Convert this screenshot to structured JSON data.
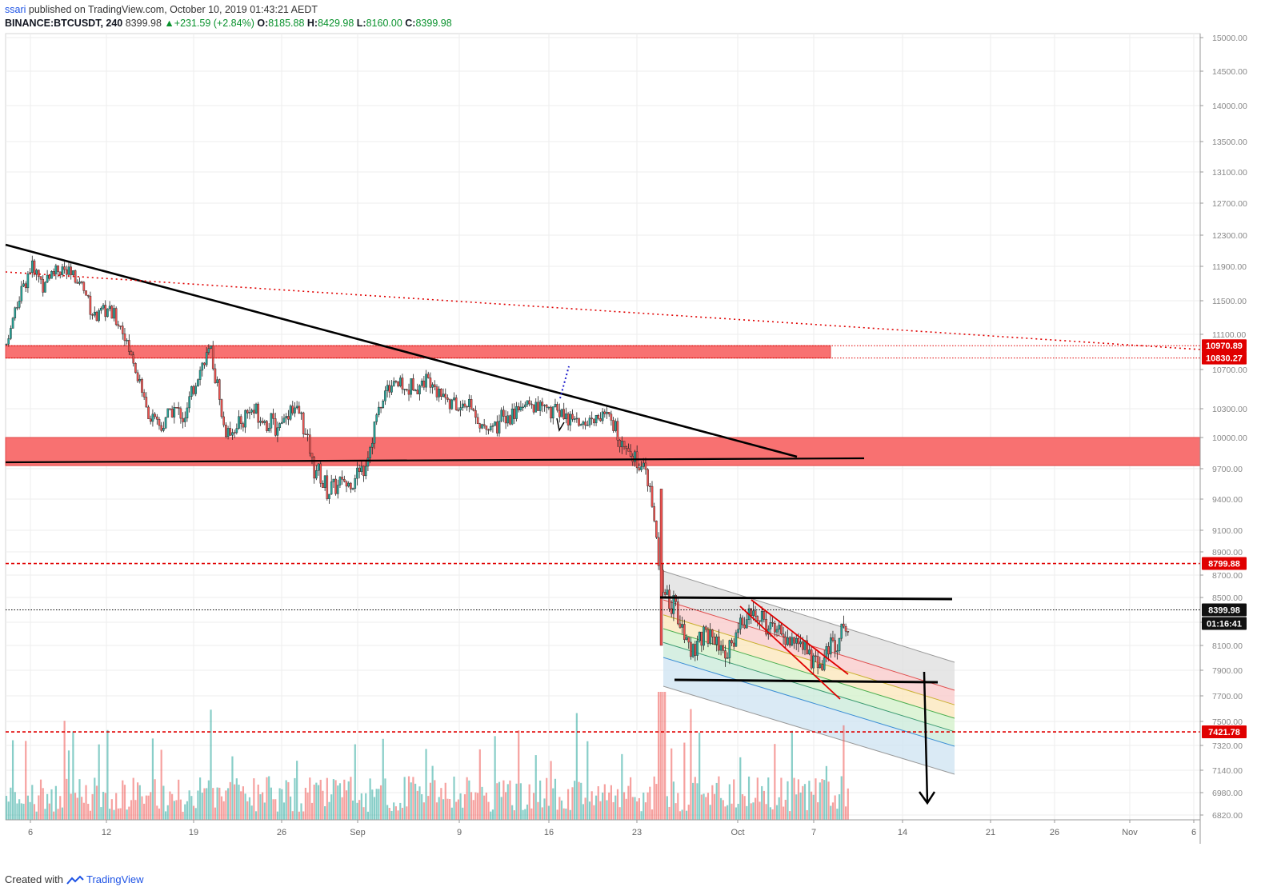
{
  "header": {
    "author": "ssari",
    "published_text": "published on TradingView.com, October 10, 2019 01:43:21 AEDT",
    "symbol": "BINANCE:BTCUSDT, 240",
    "last": "8399.98",
    "change": "+231.59 (+2.84%)",
    "o_label": "O:",
    "o_value": "8185.88",
    "h_label": "H:",
    "h_value": "8429.98",
    "l_label": "L:",
    "l_value": "8160.00",
    "c_label": "C:",
    "c_value": "8399.98"
  },
  "footer": {
    "created_with": "Created with",
    "brand": "TradingView"
  },
  "colors": {
    "up": "#26a69a",
    "down": "#ef5350",
    "zone": "#f87171",
    "level": "#e00000",
    "trend": "#000000",
    "grid": "#eeeeee"
  },
  "chart_data": {
    "type": "candlestick",
    "y_axis": {
      "ticks": [
        15000,
        14500,
        14000,
        13500,
        13100,
        12700,
        12300,
        11900,
        11500,
        11100,
        10700,
        10300,
        10000,
        9700,
        9400,
        9100,
        8900,
        8700,
        8500,
        8300,
        8100,
        7900,
        7700,
        7500,
        7320,
        7140,
        6980,
        6820
      ],
      "tick_labels": [
        "15000.00",
        "14500.00",
        "14000.00",
        "13500.00",
        "13100.00",
        "12700.00",
        "12300.00",
        "11900.00",
        "11500.00",
        "11100.00",
        "10700.00",
        "10300.00",
        "10000.00",
        "9700.00",
        "9400.00",
        "9100.00",
        "8900.00",
        "8700.00",
        "8500.00",
        "8300.00",
        "8100.00",
        "7900.00",
        "7700.00",
        "7500.00",
        "7320.00",
        "7140.00",
        "6980.00",
        "6820.00"
      ]
    },
    "x_axis": {
      "tick_labels": [
        "6",
        "12",
        "19",
        "26",
        "Sep",
        "9",
        "16",
        "23",
        "Oct",
        "7",
        "14",
        "21",
        "26",
        "Nov",
        "6"
      ]
    },
    "price_labels": [
      {
        "value": "10970.89",
        "style": "red"
      },
      {
        "value": "10830.27",
        "style": "red"
      },
      {
        "value": "8799.88",
        "style": "red"
      },
      {
        "value": "8399.98",
        "style": "dark"
      },
      {
        "value": "01:16:41",
        "style": "dark"
      },
      {
        "value": "7421.78",
        "style": "red"
      }
    ],
    "horizontal_levels": [
      8799.88,
      7421.78,
      8399.98,
      10970.89,
      10830.27
    ],
    "resistance_zones": [
      [
        10830.27,
        10970.89
      ],
      [
        9730,
        10000
      ]
    ],
    "price_path": [
      [
        "Aug 4",
        10900
      ],
      [
        "Aug 5",
        11500
      ],
      [
        "Aug 6",
        11900
      ],
      [
        "Aug 7",
        11700
      ],
      [
        "Aug 8",
        11900
      ],
      [
        "Aug 9",
        11800
      ],
      [
        "Aug 10",
        11700
      ],
      [
        "Aug 11",
        11300
      ],
      [
        "Aug 12",
        11400
      ],
      [
        "Aug 13",
        11200
      ],
      [
        "Aug 14",
        10800
      ],
      [
        "Aug 15",
        10300
      ],
      [
        "Aug 16",
        10100
      ],
      [
        "Aug 17",
        10300
      ],
      [
        "Aug 18",
        10200
      ],
      [
        "Aug 19",
        10700
      ],
      [
        "Aug 20",
        10900
      ],
      [
        "Aug 21",
        10100
      ],
      [
        "Aug 22",
        10100
      ],
      [
        "Aug 23",
        10300
      ],
      [
        "Aug 24",
        10200
      ],
      [
        "Aug 25",
        10100
      ],
      [
        "Aug 26",
        10300
      ],
      [
        "Aug 27",
        10200
      ],
      [
        "Aug 28",
        9700
      ],
      [
        "Aug 29",
        9500
      ],
      [
        "Aug 30",
        9550
      ],
      [
        "Aug 31",
        9600
      ],
      [
        "Sep 1",
        9750
      ],
      [
        "Sep 2",
        10300
      ],
      [
        "Sep 3",
        10600
      ],
      [
        "Sep 4",
        10500
      ],
      [
        "Sep 5",
        10550
      ],
      [
        "Sep 6",
        10600
      ],
      [
        "Sep 7",
        10450
      ],
      [
        "Sep 8",
        10300
      ],
      [
        "Sep 9",
        10350
      ],
      [
        "Sep 10",
        10100
      ],
      [
        "Sep 11",
        10150
      ],
      [
        "Sep 12",
        10200
      ],
      [
        "Sep 13",
        10350
      ],
      [
        "Sep 14",
        10300
      ],
      [
        "Sep 15",
        10300
      ],
      [
        "Sep 16",
        10250
      ],
      [
        "Sep 17",
        10200
      ],
      [
        "Sep 18",
        10150
      ],
      [
        "Sep 19",
        10250
      ],
      [
        "Sep 20",
        10150
      ],
      [
        "Sep 21",
        9950
      ],
      [
        "Sep 22",
        9800
      ],
      [
        "Sep 23",
        9500
      ],
      [
        "Sep 24",
        8500
      ],
      [
        "Sep 25",
        8400
      ],
      [
        "Sep 26",
        8050
      ],
      [
        "Sep 27",
        8200
      ],
      [
        "Sep 28",
        8150
      ],
      [
        "Sep 29",
        8000
      ],
      [
        "Sep 30",
        8300
      ],
      [
        "Oct 1",
        8350
      ],
      [
        "Oct 2",
        8300
      ],
      [
        "Oct 3",
        8200
      ],
      [
        "Oct 4",
        8150
      ],
      [
        "Oct 5",
        8100
      ],
      [
        "Oct 6",
        7900
      ],
      [
        "Oct 7",
        8100
      ],
      [
        "Oct 8",
        8250
      ],
      [
        "Oct 9",
        8399.98
      ]
    ]
  }
}
